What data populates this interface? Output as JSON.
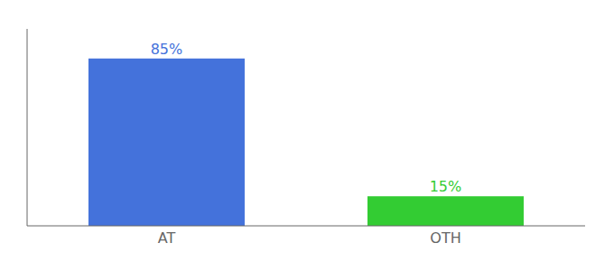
{
  "chart_data": {
    "type": "bar",
    "categories": [
      "AT",
      "OTH"
    ],
    "values": [
      85,
      15
    ],
    "value_labels": [
      "85%",
      "15%"
    ],
    "data_labels": true,
    "colors": [
      "#4472db",
      "#33cc33"
    ],
    "ylim": [
      0,
      100
    ],
    "yticks": [],
    "tick_labels": "x",
    "grid": false
  }
}
